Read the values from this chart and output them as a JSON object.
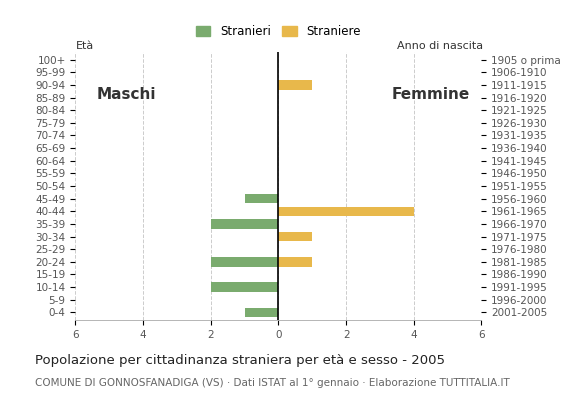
{
  "age_groups": [
    "0-4",
    "5-9",
    "10-14",
    "15-19",
    "20-24",
    "25-29",
    "30-34",
    "35-39",
    "40-44",
    "45-49",
    "50-54",
    "55-59",
    "60-64",
    "65-69",
    "70-74",
    "75-79",
    "80-84",
    "85-89",
    "90-94",
    "95-99",
    "100+"
  ],
  "birth_years": [
    "2001-2005",
    "1996-2000",
    "1991-1995",
    "1986-1990",
    "1981-1985",
    "1976-1980",
    "1971-1975",
    "1966-1970",
    "1961-1965",
    "1956-1960",
    "1951-1955",
    "1946-1950",
    "1941-1945",
    "1936-1940",
    "1931-1935",
    "1926-1930",
    "1921-1925",
    "1916-1920",
    "1911-1915",
    "1906-1910",
    "1905 o prima"
  ],
  "males": [
    1,
    0,
    2,
    0,
    2,
    0,
    0,
    2,
    0,
    1,
    0,
    0,
    0,
    0,
    0,
    0,
    0,
    0,
    0,
    0,
    0
  ],
  "females": [
    0,
    0,
    0,
    0,
    1,
    0,
    1,
    0,
    4,
    0,
    0,
    0,
    0,
    0,
    0,
    0,
    0,
    0,
    1,
    0,
    0
  ],
  "male_color": "#7aab6e",
  "female_color": "#e8b84b",
  "xlim": 6,
  "title": "Popolazione per cittadinanza straniera per età e sesso - 2005",
  "subtitle": "COMUNE DI GONNOSFANADIGA (VS) · Dati ISTAT al 1° gennaio · Elaborazione TUTTITALIA.IT",
  "legend_male": "Stranieri",
  "legend_female": "Straniere",
  "label_maschi": "Maschi",
  "label_femmine": "Femmine",
  "label_eta": "Età",
  "label_anno": "Anno di nascita",
  "bar_height": 0.75,
  "grid_color": "#cccccc",
  "tick_fontsize": 7.5,
  "title_fontsize": 9.5,
  "subtitle_fontsize": 7.5,
  "legend_fontsize": 8.5,
  "maschi_femmine_fontsize": 11
}
